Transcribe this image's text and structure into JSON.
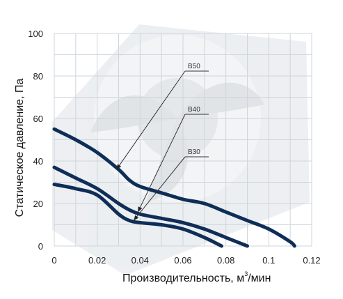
{
  "chart_data": {
    "type": "line",
    "xlabel": "Производительность, м",
    "xlabel_sup": "3",
    "xlabel_suffix": "/мин",
    "ylabel": "Статическое давление, Па",
    "xlim": [
      0,
      0.12
    ],
    "ylim": [
      0,
      100
    ],
    "x_ticks": [
      "0",
      "0.02",
      "0.04",
      "0.06",
      "0.08",
      "0.1",
      "0.12"
    ],
    "y_ticks": [
      "0",
      "20",
      "40",
      "60",
      "80",
      "100"
    ],
    "grid": true,
    "colors": {
      "curve": "#0f2e57",
      "grid": "#cfd5dc"
    },
    "series": [
      {
        "name": "B50",
        "x": [
          0,
          0.01,
          0.02,
          0.03,
          0.035,
          0.04,
          0.05,
          0.06,
          0.07,
          0.08,
          0.09,
          0.1,
          0.11,
          0.112
        ],
        "y": [
          55,
          50,
          44,
          36,
          31,
          28,
          25,
          22,
          20,
          16,
          12,
          8,
          2,
          0
        ]
      },
      {
        "name": "B40",
        "x": [
          0,
          0.01,
          0.02,
          0.03,
          0.035,
          0.04,
          0.05,
          0.06,
          0.07,
          0.08,
          0.09
        ],
        "y": [
          37,
          32,
          27,
          20,
          17,
          15,
          13,
          11,
          8,
          4,
          0
        ]
      },
      {
        "name": "B30",
        "x": [
          0,
          0.01,
          0.02,
          0.03,
          0.035,
          0.04,
          0.05,
          0.06,
          0.07,
          0.078
        ],
        "y": [
          29,
          27,
          24,
          15,
          12,
          11,
          10,
          8,
          4,
          0
        ]
      }
    ],
    "annotations": [
      "B50",
      "B40",
      "B30"
    ]
  }
}
